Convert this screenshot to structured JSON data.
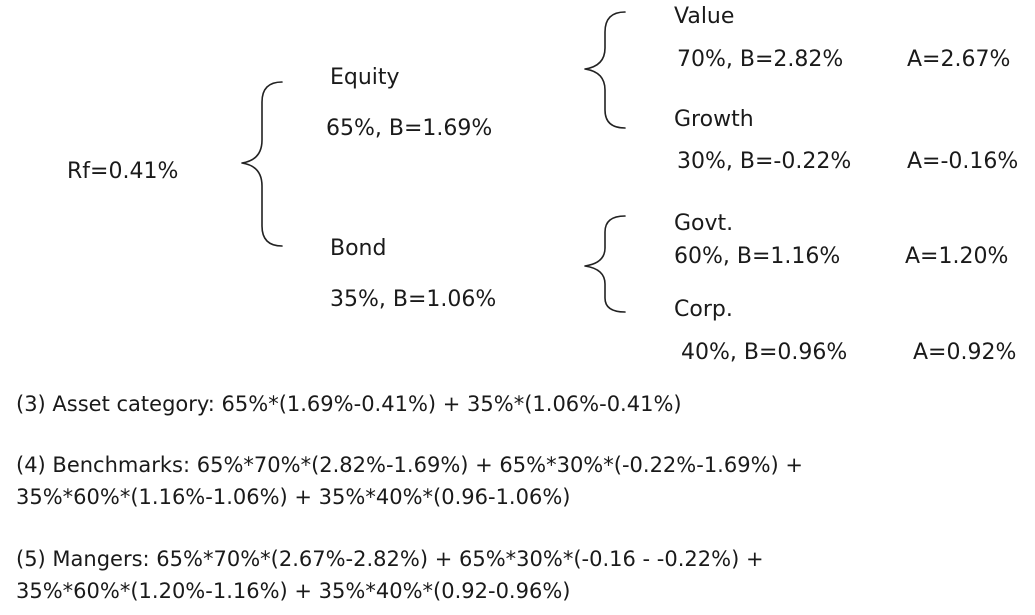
{
  "root": {
    "label": "Rf=0.41%"
  },
  "equity": {
    "title": "Equity",
    "stats": "65%, B=1.69%",
    "value": {
      "title": "Value",
      "stats": "70%, B=2.82%",
      "active": "A=2.67%"
    },
    "growth": {
      "title": "Growth",
      "stats": "30%, B=-0.22%",
      "active": "A=-0.16%"
    }
  },
  "bond": {
    "title": "Bond",
    "stats": "35%, B=1.06%",
    "govt": {
      "title": "Govt.",
      "stats": "60%, B=1.16%",
      "active": "A=1.20%"
    },
    "corp": {
      "title": "Corp.",
      "stats": "40%, B=0.96%",
      "active": "A=0.92%"
    }
  },
  "formulas": {
    "asset_category": "(3) Asset category: 65%*(1.69%-0.41%) + 35%*(1.06%-0.41%)",
    "benchmarks_line1": "(4) Benchmarks: 65%*70%*(2.82%-1.69%) + 65%*30%*(-0.22%-1.69%) +",
    "benchmarks_line2": "35%*60%*(1.16%-1.06%) + 35%*40%*(0.96-1.06%)",
    "managers_line1": "(5) Mangers: 65%*70%*(2.67%-2.82%) + 65%*30%*(-0.16 - -0.22%) +",
    "managers_line2": "35%*60%*(1.20%-1.16%) + 35%*40%*(0.92-0.96%)"
  }
}
